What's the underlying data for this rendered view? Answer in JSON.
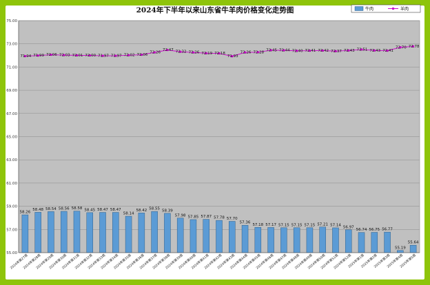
{
  "chart_data": {
    "type": "bar",
    "title": "2024年下半年以来山东省牛羊肉价格变化走势图",
    "categories": [
      "2024年第27周",
      "2024年第28周",
      "2024年第29周",
      "2024年第30周",
      "2024年第31周",
      "2024年第32周",
      "2024年第33周",
      "2024年第34周",
      "2024年第35周",
      "2024年第36周",
      "2024年第37周",
      "2024年第38周",
      "2024年第39周",
      "2024年第40周",
      "2024年第41周",
      "2024年第42周",
      "2024年第43周",
      "2024年第44周",
      "2024年第45周",
      "2024年第46周",
      "2024年第47周",
      "2024年第48周",
      "2024年第49周",
      "2024年第50周",
      "2024年第51周",
      "2024年第52周",
      "2025年第1周",
      "2025年第2周",
      "2025年第3周",
      "2025年第4周",
      "2025年第5周"
    ],
    "yticks": [
      "55.00",
      "57.00",
      "59.00",
      "61.00",
      "63.00",
      "65.00",
      "67.00",
      "69.00",
      "71.00",
      "73.00",
      "75.00"
    ],
    "ylim": [
      55,
      75
    ],
    "grid": true,
    "legend_position": "top-right",
    "series": [
      {
        "name": "牛肉",
        "type": "bar",
        "color": "#5b9bd5",
        "values": [
          58.26,
          58.48,
          58.54,
          58.56,
          58.58,
          58.45,
          58.47,
          58.47,
          58.14,
          58.42,
          58.55,
          58.39,
          57.98,
          57.85,
          57.87,
          57.78,
          57.7,
          57.36,
          57.18,
          57.17,
          57.15,
          57.15,
          57.15,
          57.21,
          57.14,
          56.97,
          56.74,
          56.75,
          56.77,
          55.19,
          55.64
        ],
        "labels": [
          "58.26",
          "58.48",
          "58.54",
          "58.56",
          "58.58",
          "58.45",
          "58.47",
          "58.47",
          "58.14",
          "58.42",
          "58.55",
          "58.39",
          "57.98",
          "57.85",
          "57.87",
          "57.78",
          "57.70",
          "57.36",
          "57.18",
          "57.17",
          "57.15",
          "57.15",
          "57.15",
          "57.21",
          "57.14",
          "56.97",
          "56.74",
          "56.75",
          "56.77",
          "55.19",
          "55.64"
        ]
      },
      {
        "name": "羊肉",
        "type": "line",
        "color": "#cc00cc",
        "values": [
          71.94,
          71.99,
          72.06,
          72.03,
          72.01,
          72.0,
          71.97,
          71.97,
          72.02,
          72.06,
          72.26,
          72.47,
          72.32,
          72.26,
          72.19,
          72.18,
          71.93,
          72.26,
          72.28,
          72.45,
          72.44,
          72.4,
          72.41,
          72.42,
          72.37,
          72.43,
          72.51,
          72.43,
          72.41,
          72.7,
          72.78
        ],
        "labels": [
          "71.94",
          "71.99",
          "72.06",
          "72.03",
          "72.01",
          "72.00",
          "71.97",
          "71.97",
          "72.02",
          "72.06",
          "72.26",
          "72.47",
          "72.32",
          "72.26",
          "72.19",
          "72.18",
          "71.93",
          "72.26",
          "72.28",
          "72.45",
          "72.44",
          "72.40",
          "72.41",
          "72.42",
          "72.37",
          "72.43",
          "72.51",
          "72.43",
          "72.41",
          "72.70",
          "72.78"
        ]
      }
    ]
  }
}
